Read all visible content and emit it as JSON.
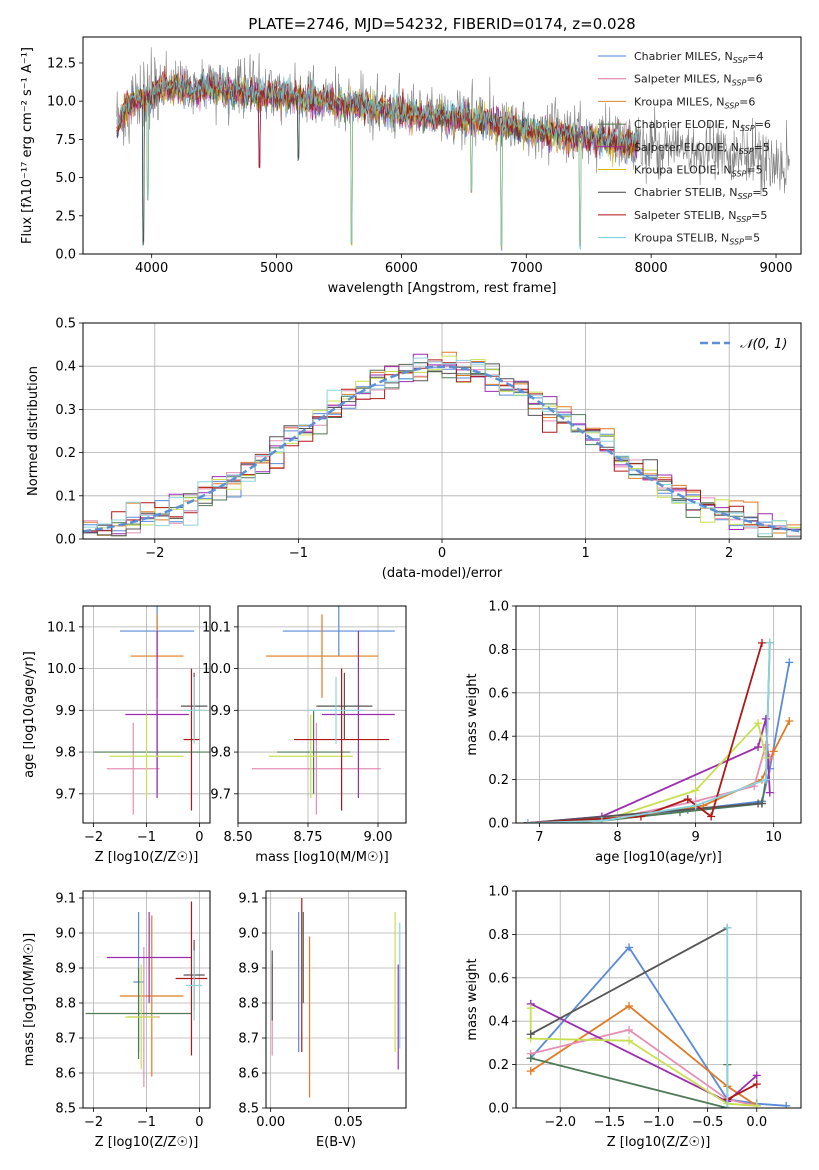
{
  "colors": [
    "#4f7fd6",
    "#e0779f",
    "#d48a2a",
    "#4c7a4c",
    "#a020a0",
    "#d4b800",
    "#404040",
    "#b01010",
    "#6fd0d8"
  ],
  "colors_small": [
    "#5a8ad8",
    "#e07a24",
    "#e68fb4",
    "#4f7a58",
    "#9c2db0",
    "#c8e050",
    "#555555",
    "#b01818",
    "#8cd4dc"
  ],
  "chart_data": [
    {
      "id": "spectrum",
      "type": "line",
      "title": "PLATE=2746, MJD=54232, FIBERID=0174, z=0.028",
      "xlabel": "wavelength [Angstrom, rest frame]",
      "ylabel": "Flux [fλ10⁻¹⁷ erg cm⁻² s⁻¹ A⁻¹]",
      "xlim": [
        3450,
        9200
      ],
      "ylim": [
        0,
        14.2
      ],
      "xticks": [
        "4000",
        "5000",
        "6000",
        "7000",
        "8000",
        "9000"
      ],
      "yticks": [
        "0.0",
        "2.5",
        "5.0",
        "7.5",
        "10.0",
        "12.5"
      ],
      "legend_position": "top-right",
      "legend": [
        "Chabrier MILES, NSSP=4",
        "Salpeter MILES, NSSP=6",
        "Kroupa MILES, NSSP=6",
        "Chabrier ELODIE, NSSP=6",
        "Salpeter ELODIE, NSSP=5",
        "Kroupa ELODIE, NSSP=5",
        "Chabrier STELIB, NSSP=5",
        "Salpeter STELIB, NSSP=5",
        "Kroupa STELIB, NSSP=5"
      ],
      "continuum": [
        [
          3720,
          8.2
        ],
        [
          3800,
          9.6
        ],
        [
          3900,
          10.1
        ],
        [
          4000,
          10.3
        ],
        [
          4100,
          11.0
        ],
        [
          4300,
          10.6
        ],
        [
          4500,
          10.9
        ],
        [
          4700,
          10.5
        ],
        [
          5000,
          10.3
        ],
        [
          5300,
          10.0
        ],
        [
          5600,
          9.7
        ],
        [
          5900,
          9.4
        ],
        [
          6200,
          9.0
        ],
        [
          6500,
          8.8
        ],
        [
          6800,
          8.5
        ],
        [
          7100,
          8.0
        ],
        [
          7400,
          7.6
        ],
        [
          7700,
          7.3
        ],
        [
          7900,
          7.2
        ]
      ],
      "data_continuum": [
        [
          3720,
          8.0
        ],
        [
          3800,
          9.5
        ],
        [
          4000,
          10.3
        ],
        [
          4200,
          11.0
        ],
        [
          4600,
          11.2
        ],
        [
          5000,
          10.6
        ],
        [
          5400,
          10.1
        ],
        [
          6000,
          9.5
        ],
        [
          6500,
          9.0
        ],
        [
          7000,
          8.3
        ],
        [
          7500,
          7.8
        ],
        [
          8000,
          7.1
        ],
        [
          8500,
          6.8
        ],
        [
          9000,
          6.0
        ],
        [
          9100,
          5.8
        ]
      ],
      "dips": [
        [
          3933,
          0.5
        ],
        [
          3968,
          3.5
        ],
        [
          4861,
          5.5
        ],
        [
          5175,
          6.0
        ],
        [
          5600,
          0.5
        ],
        [
          6563,
          4.0
        ],
        [
          6800,
          0.2
        ],
        [
          7430,
          0.3
        ]
      ]
    },
    {
      "id": "residuals",
      "type": "histogram",
      "xlabel": "(data-model)/error",
      "ylabel": "Normed distribution",
      "xlim": [
        -2.5,
        2.5
      ],
      "ylim": [
        0,
        0.5
      ],
      "xticks": [
        "−2",
        "−1",
        "0",
        "1",
        "2"
      ],
      "yticks": [
        "0.0",
        "0.1",
        "0.2",
        "0.3",
        "0.4",
        "0.5"
      ],
      "bin_width": 0.1,
      "legend": [
        "𝒩(0, 1)"
      ],
      "legend_position": "top-right"
    },
    {
      "id": "age-vs-Z",
      "type": "errorbar",
      "xlabel": "Z [log10(Z/Z☉)]",
      "ylabel": "age  [log10(age/yr)]",
      "xlim": [
        -2.2,
        0.2
      ],
      "ylim": [
        9.63,
        10.15
      ],
      "xticks": [
        "−2",
        "−1",
        "0"
      ],
      "yticks": [
        "9.7",
        "9.8",
        "9.9",
        "10.0",
        "10.1"
      ],
      "points": [
        {
          "x": -0.8,
          "xerr": 0.7,
          "y": 10.09,
          "yerr": 0.06
        },
        {
          "x": -0.8,
          "xerr": 0.5,
          "y": 10.03,
          "yerr": 0.1
        },
        {
          "x": -1.25,
          "xerr": 0.5,
          "y": 9.76,
          "yerr": 0.11
        },
        {
          "x": -0.8,
          "xerr": 1.2,
          "y": 9.8,
          "yerr": 0.1
        },
        {
          "x": -0.8,
          "xerr": 0.6,
          "y": 9.89,
          "yerr": 0.2
        },
        {
          "x": -1.0,
          "xerr": 0.7,
          "y": 9.79,
          "yerr": 0.1
        },
        {
          "x": -0.1,
          "xerr": 0.25,
          "y": 9.91,
          "yerr": 0.08
        },
        {
          "x": -0.15,
          "xerr": 0.15,
          "y": 9.83,
          "yerr": 0.17
        },
        {
          "x": -0.1,
          "xerr": 0.2,
          "y": 9.9,
          "yerr": 0.08
        }
      ]
    },
    {
      "id": "age-vs-mass",
      "type": "errorbar",
      "xlabel": "mass [log10(M/M☉)]",
      "ylabel": "",
      "xlim": [
        8.5,
        9.1
      ],
      "ylim": [
        9.63,
        10.15
      ],
      "xticks": [
        "8.50",
        "8.75",
        "9.00"
      ],
      "yticks": [
        "9.7",
        "9.8",
        "9.9",
        "10.0",
        "10.1"
      ],
      "points": [
        {
          "x": 8.86,
          "xerr": 0.2,
          "y": 10.09,
          "yerr": 0.06
        },
        {
          "x": 8.8,
          "xerr": 0.2,
          "y": 10.03,
          "yerr": 0.1
        },
        {
          "x": 8.78,
          "xerr": 0.23,
          "y": 9.76,
          "yerr": 0.11
        },
        {
          "x": 8.77,
          "xerr": 0.13,
          "y": 9.8,
          "yerr": 0.1
        },
        {
          "x": 8.93,
          "xerr": 0.13,
          "y": 9.89,
          "yerr": 0.2
        },
        {
          "x": 8.76,
          "xerr": 0.15,
          "y": 9.79,
          "yerr": 0.1
        },
        {
          "x": 8.88,
          "xerr": 0.1,
          "y": 9.91,
          "yerr": 0.08
        },
        {
          "x": 8.87,
          "xerr": 0.17,
          "y": 9.83,
          "yerr": 0.17
        },
        {
          "x": 8.85,
          "xerr": 0.1,
          "y": 9.9,
          "yerr": 0.08
        }
      ]
    },
    {
      "id": "massweight-vs-age",
      "type": "line",
      "xlabel": "age  [log10(age/yr)]",
      "ylabel": "mass weight",
      "xlim": [
        6.7,
        10.35
      ],
      "ylim": [
        0,
        1.0
      ],
      "xticks": [
        "7",
        "8",
        "9",
        "10"
      ],
      "yticks": [
        "0.0",
        "0.2",
        "0.4",
        "0.6",
        "0.8",
        "1.0"
      ],
      "series": [
        {
          "values": [
            [
              6.85,
              0.0
            ],
            [
              7.8,
              0.02
            ],
            [
              8.9,
              0.06
            ],
            [
              9.85,
              0.1
            ],
            [
              9.95,
              0.25
            ],
            [
              10.2,
              0.74
            ]
          ]
        },
        {
          "values": [
            [
              6.85,
              0.0
            ],
            [
              7.8,
              0.01
            ],
            [
              9.1,
              0.08
            ],
            [
              9.85,
              0.2
            ],
            [
              10.0,
              0.33
            ],
            [
              10.2,
              0.47
            ]
          ]
        },
        {
          "values": [
            [
              6.85,
              0.0
            ],
            [
              7.8,
              0.01
            ],
            [
              9.0,
              0.1
            ],
            [
              9.75,
              0.17
            ],
            [
              9.9,
              0.36
            ],
            [
              9.95,
              0.3
            ]
          ]
        },
        {
          "values": [
            [
              6.85,
              0.0
            ],
            [
              7.8,
              0.01
            ],
            [
              8.8,
              0.05
            ],
            [
              9.85,
              0.09
            ],
            [
              9.9,
              0.2
            ],
            [
              9.95,
              0.83
            ]
          ]
        },
        {
          "values": [
            [
              6.85,
              0.0
            ],
            [
              7.8,
              0.03
            ],
            [
              9.8,
              0.35
            ],
            [
              9.9,
              0.48
            ],
            [
              9.95,
              0.14
            ]
          ]
        },
        {
          "values": [
            [
              6.85,
              0.0
            ],
            [
              7.8,
              0.01
            ],
            [
              9.0,
              0.15
            ],
            [
              9.8,
              0.46
            ],
            [
              9.9,
              0.3
            ]
          ]
        },
        {
          "values": [
            [
              6.85,
              0.0
            ],
            [
              9.8,
              0.09
            ],
            [
              9.85,
              0.09
            ]
          ]
        },
        {
          "values": [
            [
              6.85,
              0.0
            ],
            [
              8.3,
              0.03
            ],
            [
              8.9,
              0.11
            ],
            [
              9.2,
              0.03
            ],
            [
              9.85,
              0.83
            ]
          ]
        },
        {
          "values": [
            [
              6.85,
              0.0
            ],
            [
              7.8,
              0.01
            ],
            [
              9.0,
              0.08
            ],
            [
              9.9,
              0.2
            ],
            [
              9.95,
              0.83
            ]
          ]
        }
      ]
    },
    {
      "id": "mass-vs-Z",
      "type": "errorbar",
      "xlabel": "Z [log10(Z/Z☉)]",
      "ylabel": "mass [log10(M/M☉)]",
      "xlim": [
        -2.2,
        0.2
      ],
      "ylim": [
        8.5,
        9.12
      ],
      "xticks": [
        "−2",
        "−1",
        "0"
      ],
      "yticks": [
        "8.5",
        "8.6",
        "8.7",
        "8.8",
        "8.9",
        "9.0",
        "9.1"
      ],
      "points": [
        {
          "x": -1.15,
          "xerr": 0.1,
          "y": 8.86,
          "yerr": 0.2
        },
        {
          "x": -0.9,
          "xerr": 0.6,
          "y": 8.82,
          "yerr": 0.23
        },
        {
          "x": -1.05,
          "xerr": 0.3,
          "y": 8.76,
          "yerr": 0.2
        },
        {
          "x": -1.15,
          "xerr": 1.0,
          "y": 8.77,
          "yerr": 0.13
        },
        {
          "x": -0.95,
          "xerr": 0.8,
          "y": 8.93,
          "yerr": 0.13
        },
        {
          "x": -1.1,
          "xerr": 0.3,
          "y": 8.76,
          "yerr": 0.15
        },
        {
          "x": -0.1,
          "xerr": 0.2,
          "y": 8.88,
          "yerr": 0.1
        },
        {
          "x": -0.15,
          "xerr": 0.3,
          "y": 8.87,
          "yerr": 0.22
        },
        {
          "x": -0.1,
          "xerr": 0.15,
          "y": 8.85,
          "yerr": 0.1
        }
      ]
    },
    {
      "id": "mass-vs-EBV",
      "type": "errorbar",
      "xlabel": "E(B-V)",
      "ylabel": "",
      "xlim": [
        -0.003,
        0.087
      ],
      "ylim": [
        8.5,
        9.12
      ],
      "xticks": [
        "0.00",
        "0.05"
      ],
      "yticks": [
        "8.5",
        "8.6",
        "8.7",
        "8.8",
        "8.9",
        "9.0",
        "9.1"
      ],
      "points": [
        {
          "x": 0.018,
          "xerr": 0.0,
          "y": 8.86,
          "yerr": 0.2
        },
        {
          "x": 0.025,
          "xerr": 0.0,
          "y": 8.76,
          "yerr": 0.23
        },
        {
          "x": 0.001,
          "xerr": 0.0,
          "y": 8.78,
          "yerr": 0.13
        },
        {
          "x": 0.021,
          "xerr": 0.0,
          "y": 8.93,
          "yerr": 0.13
        },
        {
          "x": 0.082,
          "xerr": 0.0,
          "y": 8.76,
          "yerr": 0.15
        },
        {
          "x": 0.08,
          "xerr": 0.0,
          "y": 8.86,
          "yerr": 0.2
        },
        {
          "x": 0.001,
          "xerr": 0.0,
          "y": 8.85,
          "yerr": 0.1
        },
        {
          "x": 0.02,
          "xerr": 0.0,
          "y": 8.88,
          "yerr": 0.22
        },
        {
          "x": 0.083,
          "xerr": 0.0,
          "y": 8.85,
          "yerr": 0.18
        }
      ]
    },
    {
      "id": "massweight-vs-Z",
      "type": "line",
      "xlabel": "Z [log10(Z/Z☉)]",
      "ylabel": "mass weight",
      "xlim": [
        -2.45,
        0.45
      ],
      "ylim": [
        0,
        1.0
      ],
      "xticks": [
        "−2.0",
        "−1.5",
        "−1.0",
        "−0.5",
        "0.0"
      ],
      "yticks": [
        "0.0",
        "0.2",
        "0.4",
        "0.6",
        "0.8",
        "1.0"
      ],
      "series": [
        {
          "values": [
            [
              -2.3,
              0.23
            ],
            [
              -1.3,
              0.74
            ],
            [
              -0.3,
              0.04
            ],
            [
              0.0,
              0.02
            ],
            [
              0.3,
              0.01
            ]
          ]
        },
        {
          "values": [
            [
              -2.3,
              0.17
            ],
            [
              -1.3,
              0.47
            ],
            [
              -0.3,
              0.1
            ],
            [
              0.0,
              0.01
            ]
          ]
        },
        {
          "values": [
            [
              -2.3,
              0.25
            ],
            [
              -1.3,
              0.36
            ],
            [
              -0.3,
              0.04
            ],
            [
              0.0,
              0.01
            ]
          ]
        },
        {
          "values": [
            [
              -2.3,
              0.23
            ],
            [
              -0.3,
              0.0
            ],
            [
              -0.3,
              0.2
            ]
          ]
        },
        {
          "values": [
            [
              -2.3,
              0.48
            ],
            [
              -0.3,
              0.03
            ],
            [
              0.0,
              0.15
            ]
          ]
        },
        {
          "values": [
            [
              -2.3,
              0.46
            ],
            [
              -2.3,
              0.32
            ],
            [
              -1.3,
              0.31
            ],
            [
              -0.3,
              0.02
            ],
            [
              0.0,
              0.01
            ]
          ]
        },
        {
          "values": [
            [
              -2.3,
              0.34
            ],
            [
              -0.3,
              0.83
            ]
          ]
        },
        {
          "values": [
            [
              -0.3,
              0.04
            ],
            [
              0.0,
              0.11
            ]
          ]
        },
        {
          "values": [
            [
              -0.3,
              0.83
            ],
            [
              -0.3,
              0.0
            ]
          ]
        }
      ]
    }
  ]
}
